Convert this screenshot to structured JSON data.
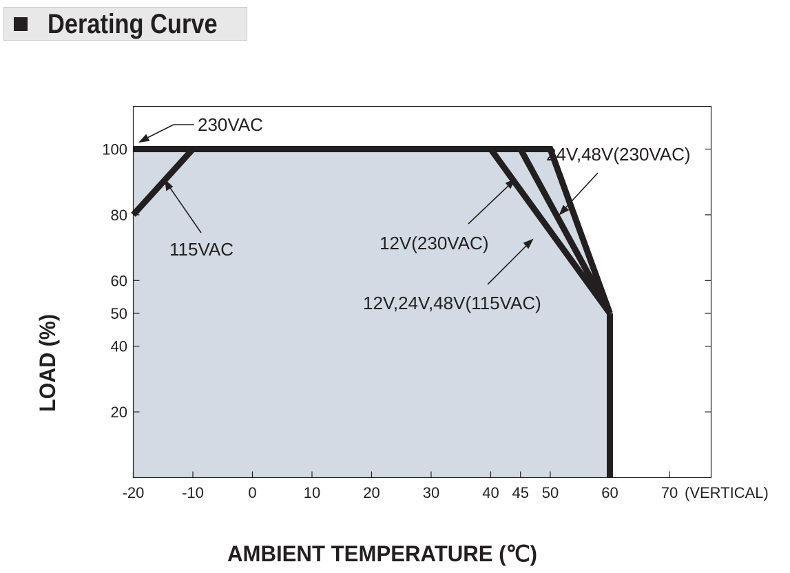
{
  "title": "Derating Curve",
  "chart_data": {
    "type": "line",
    "xlabel": "AMBIENT TEMPERATURE (℃)",
    "ylabel": "LOAD (%)",
    "x_ticks": [
      "-20",
      "-10",
      "0",
      "10",
      "20",
      "30",
      "40",
      "45",
      "50",
      "60",
      "70"
    ],
    "x_suffix": "(VERTICAL)",
    "y_ticks": [
      "20",
      "40",
      "50",
      "60",
      "80",
      "100"
    ],
    "xlim": [
      -20,
      77
    ],
    "ylim": [
      0,
      113
    ],
    "fill_color": "#d2dbe3",
    "line_color": "#231f20",
    "series": [
      {
        "name": "230VAC",
        "x": [
          -20,
          -10
        ],
        "y": [
          100,
          100
        ]
      },
      {
        "name": "115VAC",
        "x": [
          -20,
          -10
        ],
        "y": [
          80,
          100
        ]
      },
      {
        "name": "12V(230VAC)",
        "x": [
          -10,
          45,
          60
        ],
        "y": [
          100,
          100,
          50
        ]
      },
      {
        "name": "24V,48V(230VAC)",
        "x": [
          -10,
          50,
          60
        ],
        "y": [
          100,
          100,
          50
        ]
      },
      {
        "name": "12V,24V,48V(115VAC)",
        "x": [
          -10,
          40,
          60
        ],
        "y": [
          100,
          100,
          50
        ]
      },
      {
        "name": "",
        "x": [
          60,
          60
        ],
        "y": [
          50,
          0
        ]
      }
    ],
    "annotations": [
      "230VAC",
      "115VAC",
      "12V(230VAC)",
      "24V,48V(230VAC)",
      "12V,24V,48V(115VAC)"
    ]
  }
}
